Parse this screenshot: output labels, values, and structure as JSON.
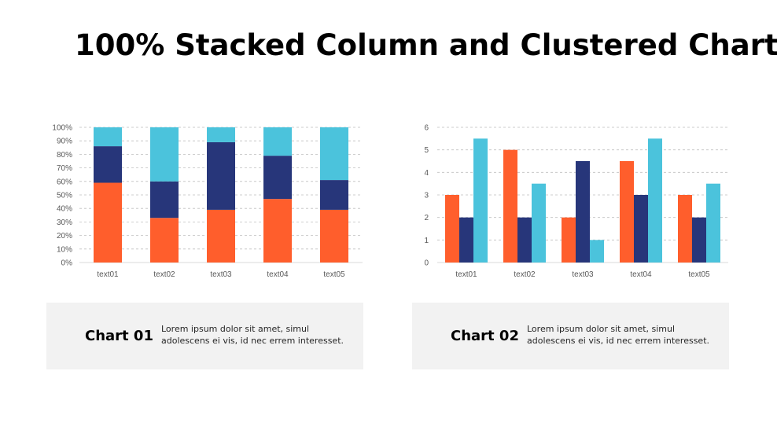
{
  "page": {
    "title": "100% Stacked Column and Clustered Chart"
  },
  "colors": {
    "orange": "#ff5e2c",
    "navy": "#27367a",
    "cyan": "#4bc3dc",
    "grid": "#bfbfbf",
    "axis": "#d9d9d9",
    "caption_bg": "#f2f2f2"
  },
  "captions": [
    {
      "title": "Chart 01",
      "text": "Lorem ipsum dolor sit amet, simul adolescens ei vis, id nec errem interesset."
    },
    {
      "title": "Chart 02",
      "text": "Lorem ipsum dolor sit amet, simul adolescens ei vis, id nec errem interesset."
    }
  ],
  "chart_data": [
    {
      "type": "bar",
      "stacking": "percent",
      "categories": [
        "text01",
        "text02",
        "text03",
        "text04",
        "text05"
      ],
      "series": [
        {
          "color": "#ff5e2c",
          "values": [
            59,
            33,
            39,
            47,
            39
          ]
        },
        {
          "color": "#27367a",
          "values": [
            27,
            27,
            50,
            32,
            22
          ]
        },
        {
          "color": "#4bc3dc",
          "values": [
            14,
            40,
            11,
            21,
            39
          ]
        }
      ],
      "yticks": [
        "0%",
        "10%",
        "20%",
        "30%",
        "40%",
        "50%",
        "60%",
        "70%",
        "80%",
        "90%",
        "100%"
      ],
      "ylim": [
        0,
        100
      ],
      "grid": true,
      "legend": "none"
    },
    {
      "type": "bar",
      "stacking": "none",
      "categories": [
        "text01",
        "text02",
        "text03",
        "text04",
        "text05"
      ],
      "series": [
        {
          "color": "#ff5e2c",
          "values": [
            3,
            5,
            2,
            4.5,
            3
          ]
        },
        {
          "color": "#27367a",
          "values": [
            2,
            2,
            4.5,
            3,
            2
          ]
        },
        {
          "color": "#4bc3dc",
          "values": [
            5.5,
            3.5,
            1,
            5.5,
            3.5
          ]
        }
      ],
      "yticks": [
        "0",
        "1",
        "2",
        "3",
        "4",
        "5",
        "6"
      ],
      "ylim": [
        0,
        6
      ],
      "grid": true,
      "legend": "none"
    }
  ]
}
